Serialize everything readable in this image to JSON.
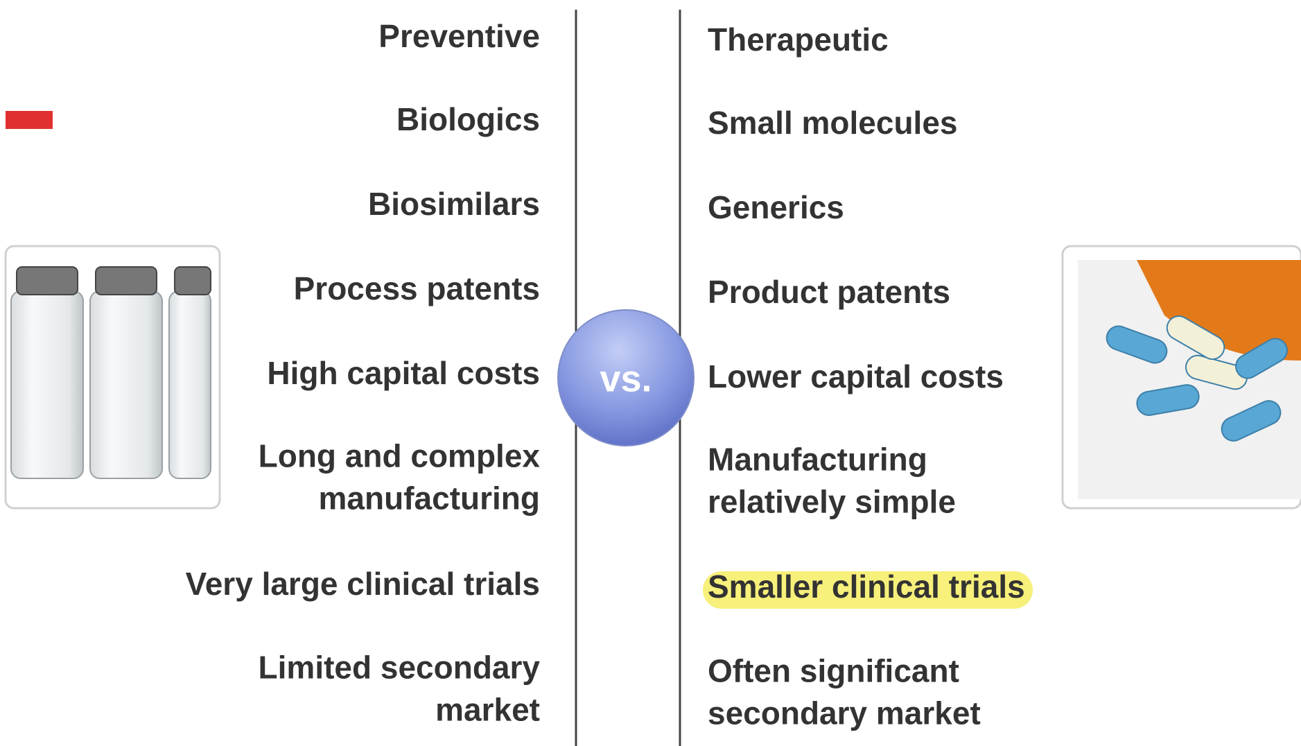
{
  "left": {
    "items": [
      {
        "lines": [
          "Preventive"
        ]
      },
      {
        "lines": [
          "Biologics"
        ]
      },
      {
        "lines": [
          "Biosimilars"
        ]
      },
      {
        "lines": [
          "Process patents"
        ]
      },
      {
        "lines": [
          "High capital costs"
        ]
      },
      {
        "lines": [
          "Long and complex",
          "manufacturing"
        ]
      },
      {
        "lines": [
          "Very large clinical trials"
        ]
      },
      {
        "lines": [
          "Limited secondary",
          "market"
        ]
      }
    ]
  },
  "right": {
    "items": [
      {
        "lines": [
          "Therapeutic"
        ]
      },
      {
        "lines": [
          "Small molecules"
        ]
      },
      {
        "lines": [
          "Generics"
        ]
      },
      {
        "lines": [
          "Product patents"
        ]
      },
      {
        "lines": [
          "Lower capital costs"
        ]
      },
      {
        "lines": [
          "Manufacturing",
          "relatively simple"
        ]
      },
      {
        "lines": [
          "Smaller clinical trials"
        ]
      },
      {
        "lines": [
          "Often significant",
          "secondary market"
        ]
      }
    ]
  },
  "divider": "vs."
}
